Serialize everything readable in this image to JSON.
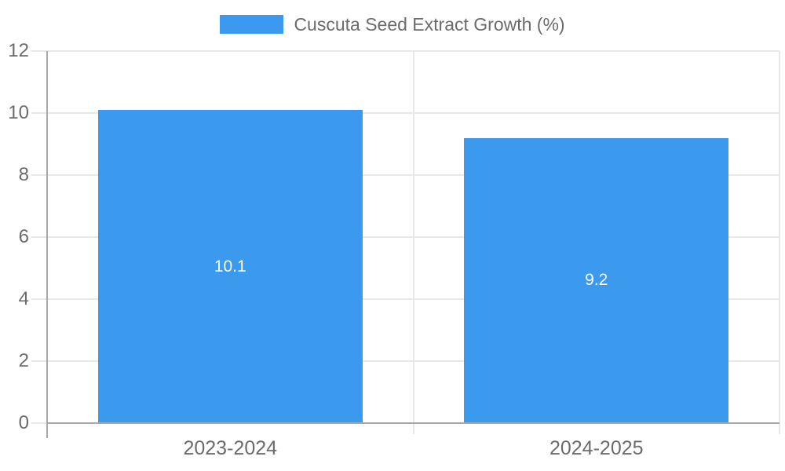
{
  "page": {
    "background_color": "#ffffff"
  },
  "legend": {
    "position": "top-center",
    "swatch_color": "#3b99ee"
  },
  "chart_data": {
    "type": "bar",
    "categories": [
      "2023-2024",
      "2024-2025"
    ],
    "series": [
      {
        "name": "Cuscuta Seed Extract Growth (%)",
        "values": [
          10.1,
          9.2
        ]
      }
    ],
    "value_labels": [
      "10.1",
      "9.2"
    ],
    "title": "",
    "xlabel": "",
    "ylabel": "",
    "ylim": [
      0,
      12
    ],
    "yticks": [
      0,
      2,
      4,
      6,
      8,
      10,
      12
    ],
    "grid": true,
    "legend_position": "top-center",
    "bar_color": "#3b99ee",
    "value_label_color": "#ffffff",
    "axis_text_color": "#6b6b6b",
    "grid_color": "#e8e8e8",
    "axis_line_color": "#a8a8a8"
  }
}
